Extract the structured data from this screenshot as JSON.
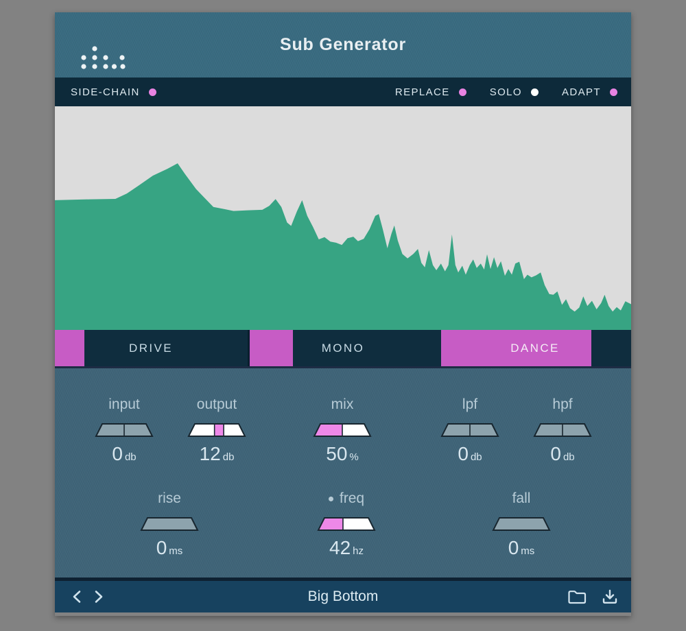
{
  "header": {
    "title": "Sub Generator"
  },
  "toggle_bar": {
    "side_chain": {
      "label": "SIDE-CHAIN",
      "dot_color": "#e883e2"
    },
    "replace": {
      "label": "REPLACE",
      "dot_color": "#e883e2"
    },
    "solo": {
      "label": "SOLO",
      "dot_color": "#ffffff"
    },
    "adapt": {
      "label": "ADAPT",
      "dot_color": "#e883e2"
    }
  },
  "mode_buttons": [
    {
      "label": "DRIVE",
      "active": false
    },
    {
      "label": "MONO",
      "active": false
    },
    {
      "label": "DANCE",
      "active": true
    }
  ],
  "controls": [
    {
      "id": "input",
      "label": "input",
      "value": "0",
      "unit": "db",
      "base": "gray",
      "marker": null,
      "dividers": [
        50
      ],
      "bullet": false
    },
    {
      "id": "output",
      "label": "output",
      "value": "12",
      "unit": "db",
      "base": "white",
      "marker": {
        "from": 46,
        "to": 62
      },
      "dividers": [
        46,
        62
      ],
      "bullet": false
    },
    {
      "id": "mix",
      "label": "mix",
      "value": "50",
      "unit": "%",
      "base": "white",
      "marker": {
        "from": 0,
        "to": 50
      },
      "dividers": [
        50
      ],
      "bullet": false
    },
    {
      "id": "lpf",
      "label": "lpf",
      "value": "0",
      "unit": "db",
      "base": "gray",
      "marker": null,
      "dividers": [
        50
      ],
      "bullet": false
    },
    {
      "id": "hpf",
      "label": "hpf",
      "value": "0",
      "unit": "db",
      "base": "gray",
      "marker": null,
      "dividers": [
        50
      ],
      "bullet": false
    },
    {
      "id": "rise",
      "label": "rise",
      "value": "0",
      "unit": "ms",
      "base": "gray",
      "marker": null,
      "dividers": [],
      "bullet": false
    },
    {
      "id": "freq",
      "label": "freq",
      "value": "42",
      "unit": "hz",
      "base": "white",
      "marker": {
        "from": 0,
        "to": 44
      },
      "dividers": [
        44
      ],
      "bullet": true
    },
    {
      "id": "fall",
      "label": "fall",
      "value": "0",
      "unit": "ms",
      "base": "gray",
      "marker": null,
      "dividers": [],
      "bullet": false
    }
  ],
  "footer": {
    "preset": "Big Bottom"
  },
  "colors": {
    "accent_magenta": "#c75cc5",
    "slider_magenta": "#ee88e8",
    "spectrum_green": "#37a483",
    "spectrum_bg": "#dcdcdc",
    "header_teal": "#396b80",
    "panel_blue": "#3f6478",
    "bar_navy": "#0d2a3a",
    "footer_blue": "#17425f",
    "slider_gray": "#8da3ad",
    "slider_outline": "#18262f",
    "text_light": "#dde9ef",
    "label_text": "#b7cbd6",
    "value_text": "#d9e7ef"
  },
  "chart_data": {
    "type": "area",
    "title": "input signal frequency spectrum",
    "legend": "none",
    "axis_labels": "none (unlabeled spectrum analyzer view)",
    "fill_color": "#37a483",
    "background_color": "#dcdcdc",
    "points_pct": [
      [
        0,
        42
      ],
      [
        6,
        41.6
      ],
      [
        10.5,
        41.4
      ],
      [
        12.5,
        39
      ],
      [
        14.5,
        35.5
      ],
      [
        17,
        31
      ],
      [
        19.5,
        28
      ],
      [
        21.3,
        25.5
      ],
      [
        22.5,
        30
      ],
      [
        24.5,
        37
      ],
      [
        26,
        41
      ],
      [
        27.5,
        45
      ],
      [
        29.5,
        46
      ],
      [
        31,
        46.8
      ],
      [
        33.5,
        46.5
      ],
      [
        36,
        46.3
      ],
      [
        37.2,
        44.5
      ],
      [
        38.3,
        41.5
      ],
      [
        39.3,
        45
      ],
      [
        40.3,
        52
      ],
      [
        41,
        53.5
      ],
      [
        42,
        47
      ],
      [
        42.9,
        42
      ],
      [
        43.8,
        49
      ],
      [
        44.8,
        54
      ],
      [
        45.8,
        59.5
      ],
      [
        46.8,
        58.5
      ],
      [
        47.8,
        60.5
      ],
      [
        48.8,
        61
      ],
      [
        49.8,
        62
      ],
      [
        50.8,
        59
      ],
      [
        51.8,
        58.3
      ],
      [
        52.6,
        60.3
      ],
      [
        53.6,
        59.3
      ],
      [
        54.6,
        55
      ],
      [
        55.6,
        49
      ],
      [
        56.2,
        48.2
      ],
      [
        56.9,
        55
      ],
      [
        57.7,
        63.5
      ],
      [
        58.4,
        57
      ],
      [
        58.9,
        53.3
      ],
      [
        59.5,
        60
      ],
      [
        60.3,
        66
      ],
      [
        61.2,
        68
      ],
      [
        62.2,
        66
      ],
      [
        63,
        63.8
      ],
      [
        63.6,
        70
      ],
      [
        64.2,
        72
      ],
      [
        64.9,
        64.3
      ],
      [
        65.6,
        71
      ],
      [
        66.2,
        73.3
      ],
      [
        67,
        70.3
      ],
      [
        67.7,
        73.8
      ],
      [
        68.3,
        71
      ],
      [
        68.9,
        57.3
      ],
      [
        69.5,
        71
      ],
      [
        70,
        74.3
      ],
      [
        70.7,
        71.3
      ],
      [
        71.3,
        75.3
      ],
      [
        72,
        71
      ],
      [
        72.6,
        68.5
      ],
      [
        73.2,
        72.3
      ],
      [
        73.9,
        70.3
      ],
      [
        74.5,
        73
      ],
      [
        75,
        66.2
      ],
      [
        75.6,
        72.8
      ],
      [
        76.2,
        67.5
      ],
      [
        76.8,
        72.3
      ],
      [
        77.4,
        69.3
      ],
      [
        78.1,
        75.8
      ],
      [
        78.7,
        72.8
      ],
      [
        79.3,
        75.3
      ],
      [
        79.9,
        70.3
      ],
      [
        80.6,
        69.5
      ],
      [
        81.4,
        77.3
      ],
      [
        82,
        75.3
      ],
      [
        82.7,
        76.5
      ],
      [
        83.5,
        75.6
      ],
      [
        84.3,
        74.3
      ],
      [
        85,
        80
      ],
      [
        85.8,
        84
      ],
      [
        86.5,
        84.3
      ],
      [
        87.2,
        82.8
      ],
      [
        88,
        88.8
      ],
      [
        88.7,
        86.3
      ],
      [
        89.4,
        90.3
      ],
      [
        90.2,
        91.8
      ],
      [
        91,
        90
      ],
      [
        91.7,
        85
      ],
      [
        92.4,
        89.3
      ],
      [
        93.2,
        87
      ],
      [
        94,
        90.8
      ],
      [
        94.8,
        88
      ],
      [
        95.4,
        84.3
      ],
      [
        96.1,
        89.3
      ],
      [
        96.8,
        91.8
      ],
      [
        97.5,
        89.8
      ],
      [
        98.2,
        91.3
      ],
      [
        99,
        87.2
      ],
      [
        100,
        88.5
      ]
    ]
  }
}
